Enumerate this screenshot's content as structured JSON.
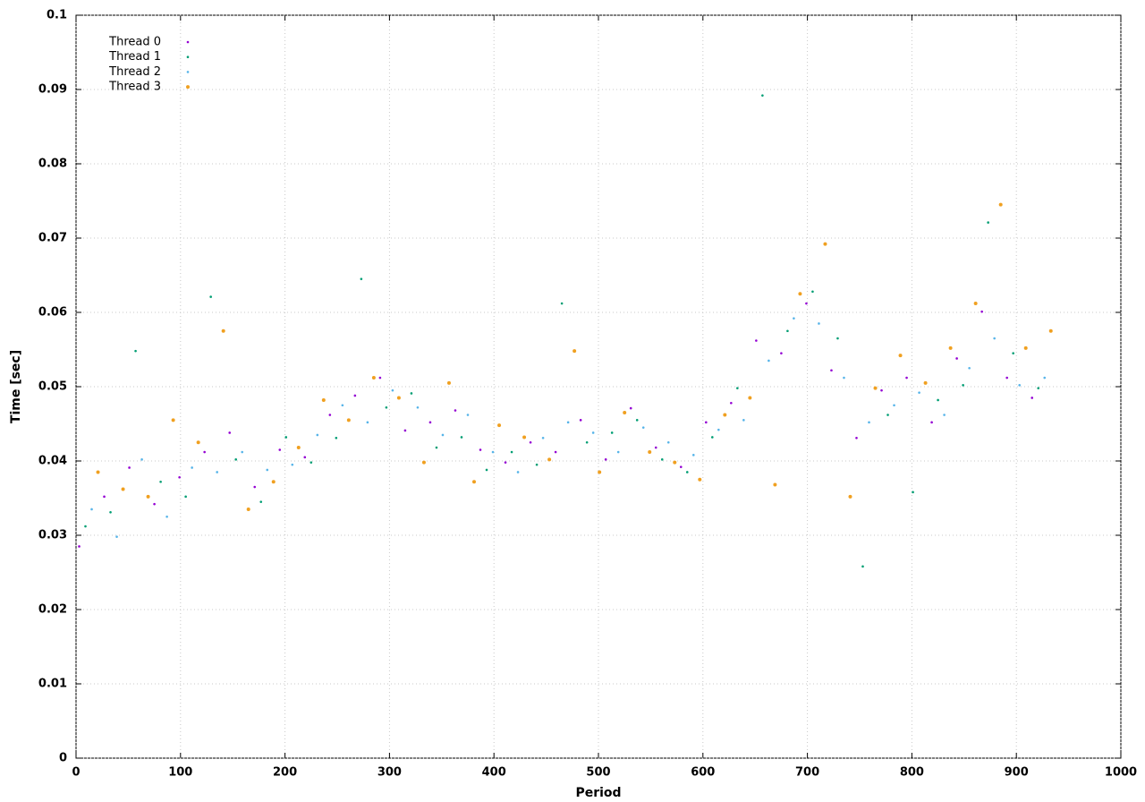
{
  "chart_data": {
    "type": "scatter",
    "xlabel": "Period",
    "ylabel": "Time [sec]",
    "xlim": [
      0,
      1000
    ],
    "ylim": [
      0,
      0.1
    ],
    "xticks": [
      0,
      100,
      200,
      300,
      400,
      500,
      600,
      700,
      800,
      900,
      1000
    ],
    "yticks": [
      0,
      0.01,
      0.02,
      0.03,
      0.04,
      0.05,
      0.06,
      0.07,
      0.08,
      0.09,
      0.1
    ],
    "grid": true,
    "legend": "top-left",
    "series": [
      {
        "name": "Thread 0",
        "color": "#9400d3",
        "x": [
          3,
          27,
          51,
          75,
          99,
          123,
          147,
          171,
          195,
          219,
          243,
          267,
          291,
          315,
          339,
          363,
          387,
          411,
          435,
          459,
          483,
          507,
          531,
          555,
          579,
          603,
          627,
          651,
          675,
          699,
          723,
          747,
          771,
          795,
          819,
          843,
          867,
          891,
          915
        ],
        "values": [
          0.0285,
          0.0352,
          0.0391,
          0.0342,
          0.0378,
          0.0412,
          0.0438,
          0.0365,
          0.0415,
          0.0405,
          0.0462,
          0.0488,
          0.0512,
          0.0441,
          0.0452,
          0.0468,
          0.0415,
          0.0398,
          0.0425,
          0.0412,
          0.0455,
          0.0402,
          0.0471,
          0.0418,
          0.0392,
          0.0452,
          0.0478,
          0.0562,
          0.0545,
          0.0612,
          0.0522,
          0.0431,
          0.0495,
          0.0512,
          0.0452,
          0.0538,
          0.0601,
          0.0512,
          0.0485
        ]
      },
      {
        "name": "Thread 1",
        "color": "#009e73",
        "x": [
          9,
          33,
          57,
          81,
          105,
          129,
          153,
          177,
          201,
          225,
          249,
          273,
          297,
          321,
          345,
          369,
          393,
          417,
          441,
          465,
          489,
          513,
          537,
          561,
          585,
          609,
          633,
          657,
          681,
          705,
          729,
          753,
          777,
          801,
          825,
          849,
          873,
          897,
          921
        ],
        "values": [
          0.0312,
          0.0331,
          0.0548,
          0.0372,
          0.0352,
          0.0621,
          0.0402,
          0.0345,
          0.0432,
          0.0398,
          0.0431,
          0.0645,
          0.0472,
          0.0491,
          0.0418,
          0.0432,
          0.0388,
          0.0412,
          0.0395,
          0.0612,
          0.0425,
          0.0438,
          0.0455,
          0.0402,
          0.0385,
          0.0432,
          0.0498,
          0.0892,
          0.0575,
          0.0628,
          0.0565,
          0.0258,
          0.0462,
          0.0358,
          0.0482,
          0.0502,
          0.0721,
          0.0545,
          0.0498
        ]
      },
      {
        "name": "Thread 2",
        "color": "#56b4e9",
        "x": [
          15,
          39,
          63,
          87,
          111,
          135,
          159,
          183,
          207,
          231,
          255,
          279,
          303,
          327,
          351,
          375,
          399,
          423,
          447,
          471,
          495,
          519,
          543,
          567,
          591,
          615,
          639,
          663,
          687,
          711,
          735,
          759,
          783,
          807,
          831,
          855,
          879,
          903,
          927
        ],
        "values": [
          0.0335,
          0.0298,
          0.0402,
          0.0325,
          0.0391,
          0.0385,
          0.0412,
          0.0388,
          0.0395,
          0.0435,
          0.0475,
          0.0452,
          0.0495,
          0.0472,
          0.0435,
          0.0462,
          0.0412,
          0.0385,
          0.0431,
          0.0452,
          0.0438,
          0.0412,
          0.0445,
          0.0425,
          0.0408,
          0.0442,
          0.0455,
          0.0535,
          0.0592,
          0.0585,
          0.0512,
          0.0452,
          0.0475,
          0.0492,
          0.0462,
          0.0525,
          0.0565,
          0.0502,
          0.0512
        ]
      },
      {
        "name": "Thread 3",
        "color": "#f0a020",
        "x": [
          21,
          45,
          69,
          93,
          117,
          141,
          165,
          189,
          213,
          237,
          261,
          285,
          309,
          333,
          357,
          381,
          405,
          429,
          453,
          477,
          501,
          525,
          549,
          573,
          597,
          621,
          645,
          669,
          693,
          717,
          741,
          765,
          789,
          813,
          837,
          861,
          885,
          909,
          933
        ],
        "values": [
          0.0385,
          0.0362,
          0.0352,
          0.0455,
          0.0425,
          0.0575,
          0.0335,
          0.0372,
          0.0418,
          0.0482,
          0.0455,
          0.0512,
          0.0485,
          0.0398,
          0.0505,
          0.0372,
          0.0448,
          0.0432,
          0.0402,
          0.0548,
          0.0385,
          0.0465,
          0.0412,
          0.0398,
          0.0375,
          0.0462,
          0.0485,
          0.0368,
          0.0625,
          0.0692,
          0.0352,
          0.0498,
          0.0542,
          0.0505,
          0.0552,
          0.0612,
          0.0745,
          0.0552,
          0.0575
        ]
      }
    ]
  }
}
